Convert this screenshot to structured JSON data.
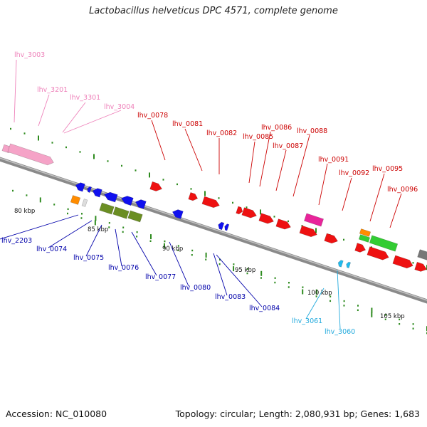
{
  "title": "Lactobacillus helveticus DPC 4571, complete genome",
  "footer": {
    "accession": "Accession: NC_010080",
    "summary": "Topology: circular; Length: 2,080,931 bp; Genes: 1,683"
  },
  "colors": {
    "backbone": "#8a8a8a",
    "tick": "#2e8b1f",
    "pink": "#f5a3c7",
    "red": "#ee1111",
    "blue": "#1010ee",
    "olive": "#6b8e23",
    "orange": "#ff8c00",
    "green": "#33cc33",
    "magenta": "#e8249a",
    "cyan": "#22bbee",
    "gray": "#777777",
    "label_pink": "#ee82ba",
    "label_red": "#cc0000",
    "label_blue": "#0000aa",
    "label_cyan": "#22aadd"
  },
  "kbp_labels": [
    "80 kbp",
    "85 kbp",
    "90 kbp",
    "95 kbp",
    "100 kbp",
    "105 kbp"
  ],
  "gene_labels": {
    "pink": [
      "lhv_3003",
      "lhv_3201",
      "lhv_3301",
      "lhv_3004"
    ],
    "red": [
      "lhv_0078",
      "lhv_0081",
      "lhv_0082",
      "lhv_0085",
      "lhv_0086",
      "lhv_0087",
      "lhv_0088",
      "lhv_0091",
      "lhv_0092",
      "lhv_0095",
      "lhv_0096"
    ],
    "blue": [
      "lhv_2203",
      "lhv_0074",
      "lhv_0075",
      "lhv_0076",
      "lhv_0077",
      "lhv_0080",
      "lhv_0083",
      "lhv_0084"
    ],
    "cyan": [
      "lhv_3061",
      "lhv_3060"
    ]
  }
}
